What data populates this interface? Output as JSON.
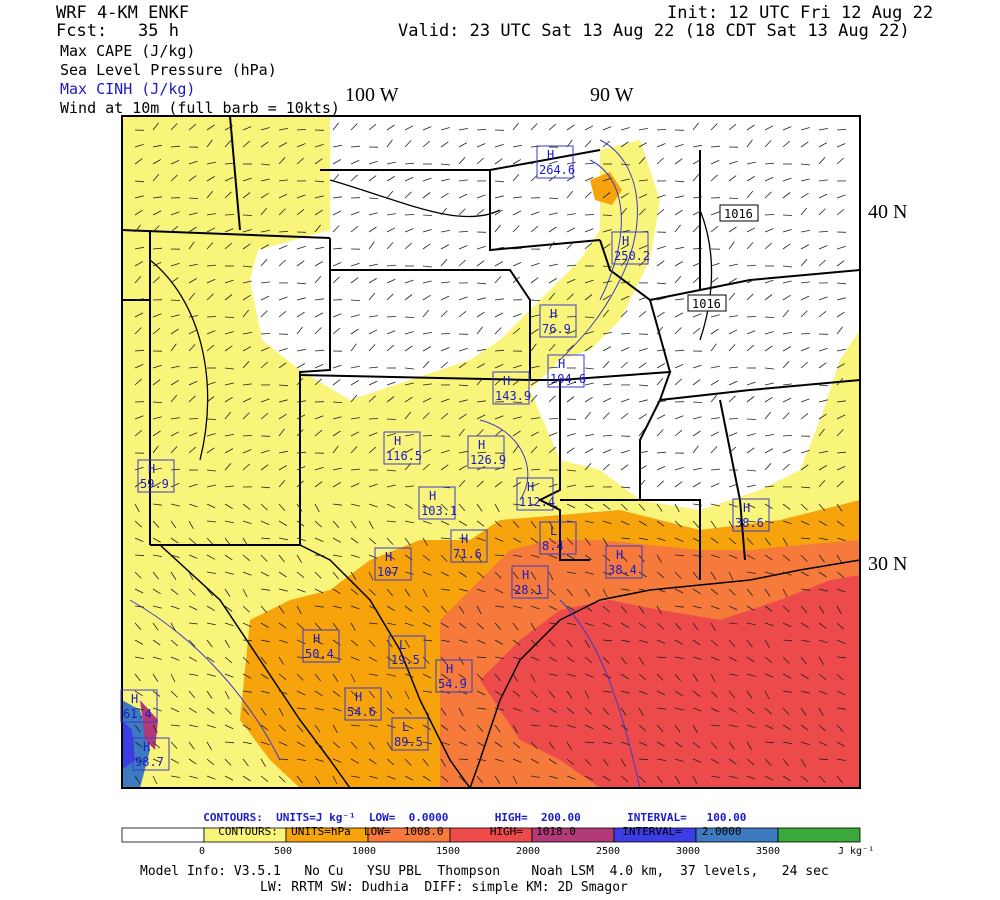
{
  "header": {
    "model": "WRF 4-KM ENKF",
    "fcst_label": "Fcst:",
    "fcst_value": "35 h",
    "init": "Init: 12 UTC Fri 12 Aug 22",
    "valid": "Valid: 23 UTC Sat 13 Aug 22 (18 CDT Sat 13 Aug 22)",
    "fields": [
      "Max CAPE (J/kg)",
      "Sea Level Pressure (hPa)",
      "Max CINH (J/kg)",
      "Wind at 10m (full barb = 10kts)"
    ]
  },
  "map": {
    "lon_labels": [
      "100 W",
      "90 W"
    ],
    "lat_labels": [
      "40 N",
      "30 N"
    ],
    "pressure_labels": [
      "1016",
      "1016"
    ],
    "markers": [
      {
        "type": "H",
        "value": "264.6"
      },
      {
        "type": "H",
        "value": "250.2"
      },
      {
        "type": "H",
        "value": "76.9"
      },
      {
        "type": "H",
        "value": "104.6"
      },
      {
        "type": "H",
        "value": "143.9"
      },
      {
        "type": "H",
        "value": "116.5"
      },
      {
        "type": "H",
        "value": "126.9"
      },
      {
        "type": "H",
        "value": "112.4"
      },
      {
        "type": "H",
        "value": "103.1"
      },
      {
        "type": "H",
        "value": "71.6"
      },
      {
        "type": "H",
        "value": "107"
      },
      {
        "type": "L",
        "value": "8.4"
      },
      {
        "type": "H",
        "value": "28.1"
      },
      {
        "type": "H",
        "value": "38.4"
      },
      {
        "type": "H",
        "value": "38.6"
      },
      {
        "type": "H",
        "value": "50.4"
      },
      {
        "type": "L",
        "value": "19.5"
      },
      {
        "type": "H",
        "value": "54.9"
      },
      {
        "type": "H",
        "value": "54.6"
      },
      {
        "type": "L",
        "value": "89.5"
      },
      {
        "type": "H",
        "value": "98.7"
      },
      {
        "type": "H",
        "value": "61.4"
      },
      {
        "type": "H",
        "value": "59.9"
      }
    ]
  },
  "contours": {
    "line1": {
      "label": "CONTOURS:",
      "units": "UNITS=J kg⁻¹",
      "low": "LOW=  0.0000",
      "high": "HIGH=  200.00",
      "interval": "INTERVAL=   100.00"
    },
    "line2": {
      "label": "CONTOURS:",
      "units": "UNITS=hPa",
      "low": "LOW=  1008.0",
      "high": "HIGH=  1018.0",
      "interval": "INTERVAL=   2.0000"
    }
  },
  "colorbar": {
    "labels": [
      "0",
      "500",
      "1000",
      "1500",
      "2000",
      "2500",
      "3000",
      "3500"
    ],
    "unit": "J kg⁻¹",
    "colors": [
      "#ffffff",
      "#f9f57a",
      "#f7a30c",
      "#f57a3c",
      "#ed4b4b",
      "#b23a78",
      "#3d3de6",
      "#3e7ac0",
      "#3aa83a"
    ]
  },
  "footer": {
    "line1": "Model Info: V3.5.1   No Cu   YSU PBL  Thompson    Noah LSM  4.0 km,  37 levels,   24 sec",
    "line2": "LW: RRTM SW: Dudhia  DIFF: simple KM: 2D Smagor"
  }
}
